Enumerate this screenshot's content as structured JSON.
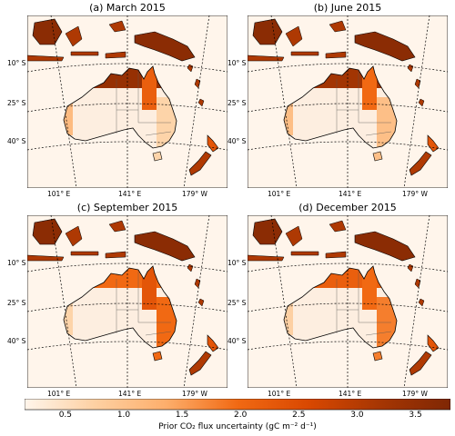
{
  "panels": [
    {
      "title": "(a) March 2015",
      "heat": {
        "north": 0.9,
        "east": 0.55,
        "southeast": 0.15,
        "png": 0.95
      }
    },
    {
      "title": "(b) June 2015",
      "heat": {
        "north": 0.85,
        "east": 0.5,
        "southeast": 0.25,
        "png": 0.95
      }
    },
    {
      "title": "(c) September 2015",
      "heat": {
        "north": 0.5,
        "east": 0.6,
        "southeast": 0.5,
        "png": 0.95
      }
    },
    {
      "title": "(d) December 2015",
      "heat": {
        "north": 0.55,
        "east": 0.5,
        "southeast": 0.45,
        "png": 0.95
      }
    }
  ],
  "lat_labels": [
    "10° S",
    "25° S",
    "40° S"
  ],
  "lon_labels": [
    "101° E",
    "141° E",
    "179° W"
  ],
  "colorbar": {
    "ticks": [
      "0.5",
      "1.0",
      "1.5",
      "2.0",
      "2.5",
      "3.0",
      "3.5"
    ],
    "tick_values": [
      0.5,
      1.0,
      1.5,
      2.0,
      2.5,
      3.0,
      3.5
    ],
    "min": 0.15,
    "max": 3.8,
    "label": "Prior CO₂ flux uncertainty (gC m⁻² d⁻¹)",
    "colors": [
      "#fff5eb",
      "#fdd0a2",
      "#fdae6b",
      "#f16913",
      "#d94801",
      "#a63603",
      "#7f2704"
    ]
  },
  "background_color": "#fff5eb",
  "land_base_color": "#fdeee0"
}
